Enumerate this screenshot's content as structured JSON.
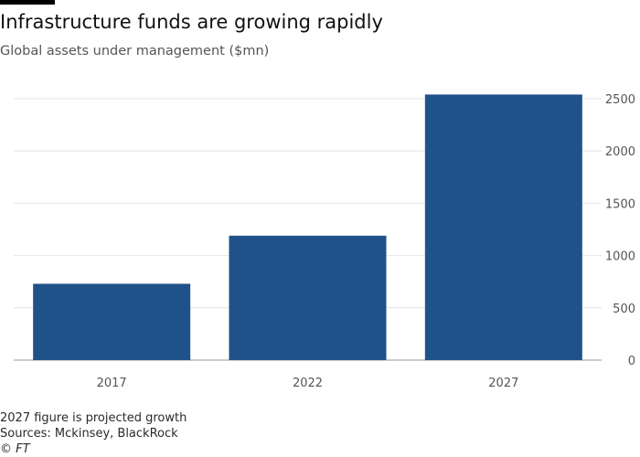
{
  "chart_data": {
    "type": "bar",
    "title": "Infrastructure funds are growing rapidly",
    "subtitle": "Global assets under management ($mn)",
    "categories": [
      "2017",
      "2022",
      "2027"
    ],
    "values": [
      730,
      1190,
      2540
    ],
    "ylim": [
      0,
      2500
    ],
    "yticks": [
      0,
      500,
      1000,
      1500,
      2000,
      2500
    ],
    "y_axis_side": "right",
    "grid": true,
    "bar_color": "#1f5289",
    "notes": [
      "2027 figure is projected growth",
      "Sources: Mckinsey, BlackRock"
    ],
    "copyright": "© FT"
  }
}
